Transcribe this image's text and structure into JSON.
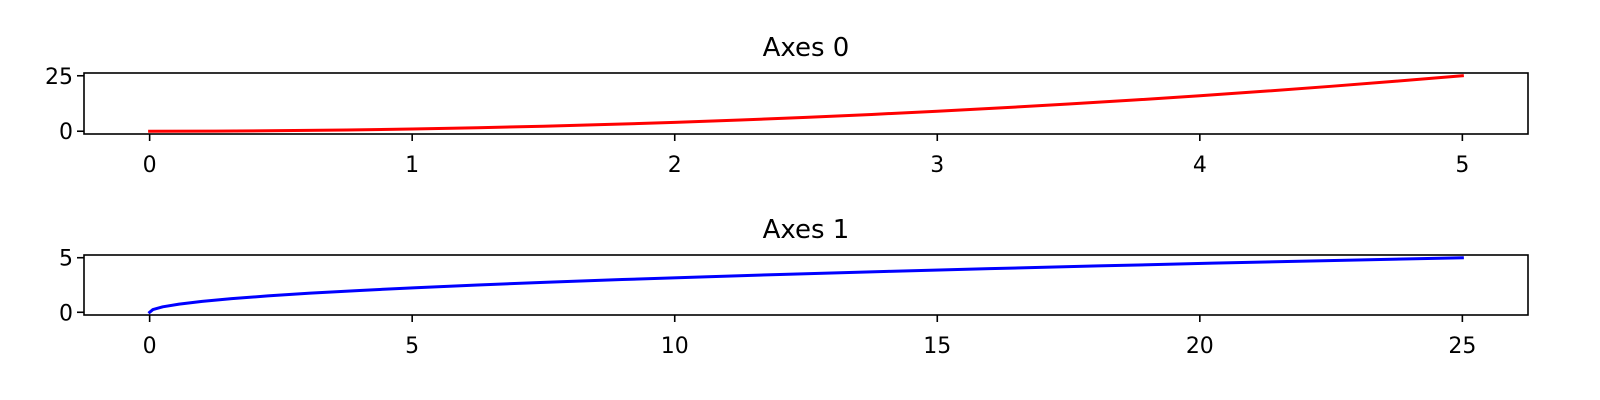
{
  "chart_data": [
    {
      "type": "line",
      "title": "Axes 0",
      "xlabel": "",
      "ylabel": "",
      "xlim": [
        -0.25,
        5.25
      ],
      "ylim": [
        -1.25,
        26.25
      ],
      "xticks": [
        0,
        1,
        2,
        3,
        4,
        5
      ],
      "yticks": [
        0,
        25
      ],
      "grid": false,
      "series": [
        {
          "color": "#ff0000",
          "x": [
            0,
            0.25,
            0.5,
            0.75,
            1,
            1.25,
            1.5,
            1.75,
            2,
            2.25,
            2.5,
            2.75,
            3,
            3.25,
            3.5,
            3.75,
            4,
            4.25,
            4.5,
            4.75,
            5
          ],
          "y": [
            0,
            0.0625,
            0.25,
            0.5625,
            1,
            1.5625,
            2.25,
            3.0625,
            4,
            5.0625,
            6.25,
            7.5625,
            9,
            10.5625,
            12.25,
            14.0625,
            16,
            18.0625,
            20.25,
            22.5625,
            25
          ]
        }
      ]
    },
    {
      "type": "line",
      "title": "Axes 1",
      "xlabel": "",
      "ylabel": "",
      "xlim": [
        -1.25,
        26.25
      ],
      "ylim": [
        -0.25,
        5.25
      ],
      "xticks": [
        0,
        5,
        10,
        15,
        20,
        25
      ],
      "yticks": [
        0,
        5
      ],
      "grid": false,
      "series": [
        {
          "color": "#0000ff",
          "x": [
            0,
            0.0625,
            0.25,
            0.5625,
            1,
            1.5625,
            2.25,
            3.0625,
            4,
            5.0625,
            6.25,
            7.5625,
            9,
            10.5625,
            12.25,
            14.0625,
            16,
            18.0625,
            20.25,
            22.5625,
            25
          ],
          "y": [
            0,
            0.25,
            0.5,
            0.75,
            1,
            1.25,
            1.5,
            1.75,
            2,
            2.25,
            2.5,
            2.75,
            3,
            3.25,
            3.5,
            3.75,
            4,
            4.25,
            4.5,
            4.75,
            5
          ]
        }
      ]
    }
  ]
}
